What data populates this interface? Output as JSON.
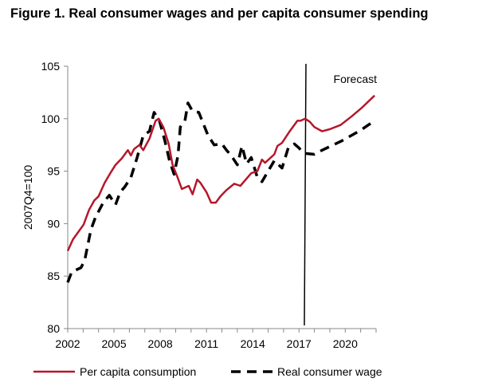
{
  "chart_data": {
    "type": "line",
    "title": "Figure 1. Real consumer wages and per capita consumer spending",
    "xlabel": "",
    "ylabel": "2007Q4=100",
    "xlim": [
      2002,
      2022
    ],
    "ylim": [
      80,
      105
    ],
    "xticks": [
      2002,
      2005,
      2008,
      2011,
      2014,
      2017,
      2020
    ],
    "yticks": [
      80,
      85,
      90,
      95,
      100,
      105
    ],
    "grid": false,
    "legend": "bottom",
    "annotation": {
      "text": "Forecast",
      "forecast_start": 2017.4
    },
    "series": [
      {
        "name": "Per capita consumption",
        "color": "#b5172b",
        "style": "solid",
        "x": [
          2002,
          2002.34,
          2003.03,
          2003.38,
          2003.72,
          2004,
          2004.4,
          2004.8,
          2005.1,
          2005.5,
          2005.9,
          2006.1,
          2006.3,
          2006.65,
          2006.9,
          2007.3,
          2007.7,
          2007.9,
          2008.2,
          2008.55,
          2008.8,
          2009.1,
          2009.4,
          2009.85,
          2010.1,
          2010.4,
          2010.6,
          2011,
          2011.3,
          2011.6,
          2011.9,
          2012.3,
          2012.8,
          2013.2,
          2013.55,
          2013.9,
          2014.3,
          2014.6,
          2014.8,
          2015.4,
          2015.6,
          2015.9,
          2016.4,
          2016.9,
          2017.1,
          2017.4,
          2017.7,
          2018,
          2018.5,
          2019,
          2019.7,
          2020.4,
          2021.05,
          2021.9
        ],
        "y": [
          87.4,
          88.5,
          89.9,
          91.3,
          92.2,
          92.6,
          93.9,
          94.9,
          95.6,
          96.2,
          97.0,
          96.5,
          97.1,
          97.5,
          97.0,
          98.1,
          99.8,
          100,
          99.2,
          97.6,
          95.6,
          94.5,
          93.3,
          93.6,
          92.8,
          94.2,
          93.9,
          93.0,
          92.0,
          92.0,
          92.6,
          93.2,
          93.8,
          93.6,
          94.2,
          94.8,
          95.0,
          96.1,
          95.8,
          96.6,
          97.4,
          97.7,
          98.8,
          99.8,
          99.8,
          100,
          99.7,
          99.2,
          98.8,
          99.0,
          99.4,
          100.2,
          101.0,
          102.2
        ]
      },
      {
        "name": "Real consumer wage",
        "color": "#000000",
        "style": "dashed",
        "x": [
          2002,
          2002.26,
          2002.86,
          2003.1,
          2003.5,
          2003.8,
          2004.3,
          2004.7,
          2005.1,
          2005.4,
          2005.7,
          2006.1,
          2006.5,
          2006.9,
          2007.3,
          2007.6,
          2007.95,
          2008.3,
          2008.6,
          2008.9,
          2009.15,
          2009.3,
          2009.6,
          2009.8,
          2010.1,
          2010.5,
          2010.8,
          2011.1,
          2011.5,
          2012,
          2012.3,
          2012.6,
          2013,
          2013.3,
          2013.6,
          2013.9,
          2014.3,
          2014.6,
          2015.4,
          2015.9,
          2016.3,
          2016.7,
          2017,
          2017.3,
          2018,
          2018.5,
          2019.8,
          2021,
          2021.9
        ],
        "y": [
          84.4,
          85.4,
          85.8,
          86.5,
          89.4,
          90.6,
          92.0,
          92.7,
          91.8,
          93.0,
          93.5,
          94.4,
          96.3,
          98.4,
          98.8,
          100.6,
          99.8,
          97.9,
          96.0,
          94.7,
          96.5,
          99.2,
          99.8,
          101.5,
          100.7,
          100.6,
          99.5,
          98.4,
          97.5,
          97.6,
          97.0,
          96.5,
          95.6,
          97.4,
          95.7,
          96.3,
          94.4,
          94.0,
          96.0,
          95.3,
          97.2,
          97.6,
          97.2,
          96.7,
          96.6,
          97.0,
          97.9,
          98.9,
          99.8
        ]
      }
    ]
  }
}
